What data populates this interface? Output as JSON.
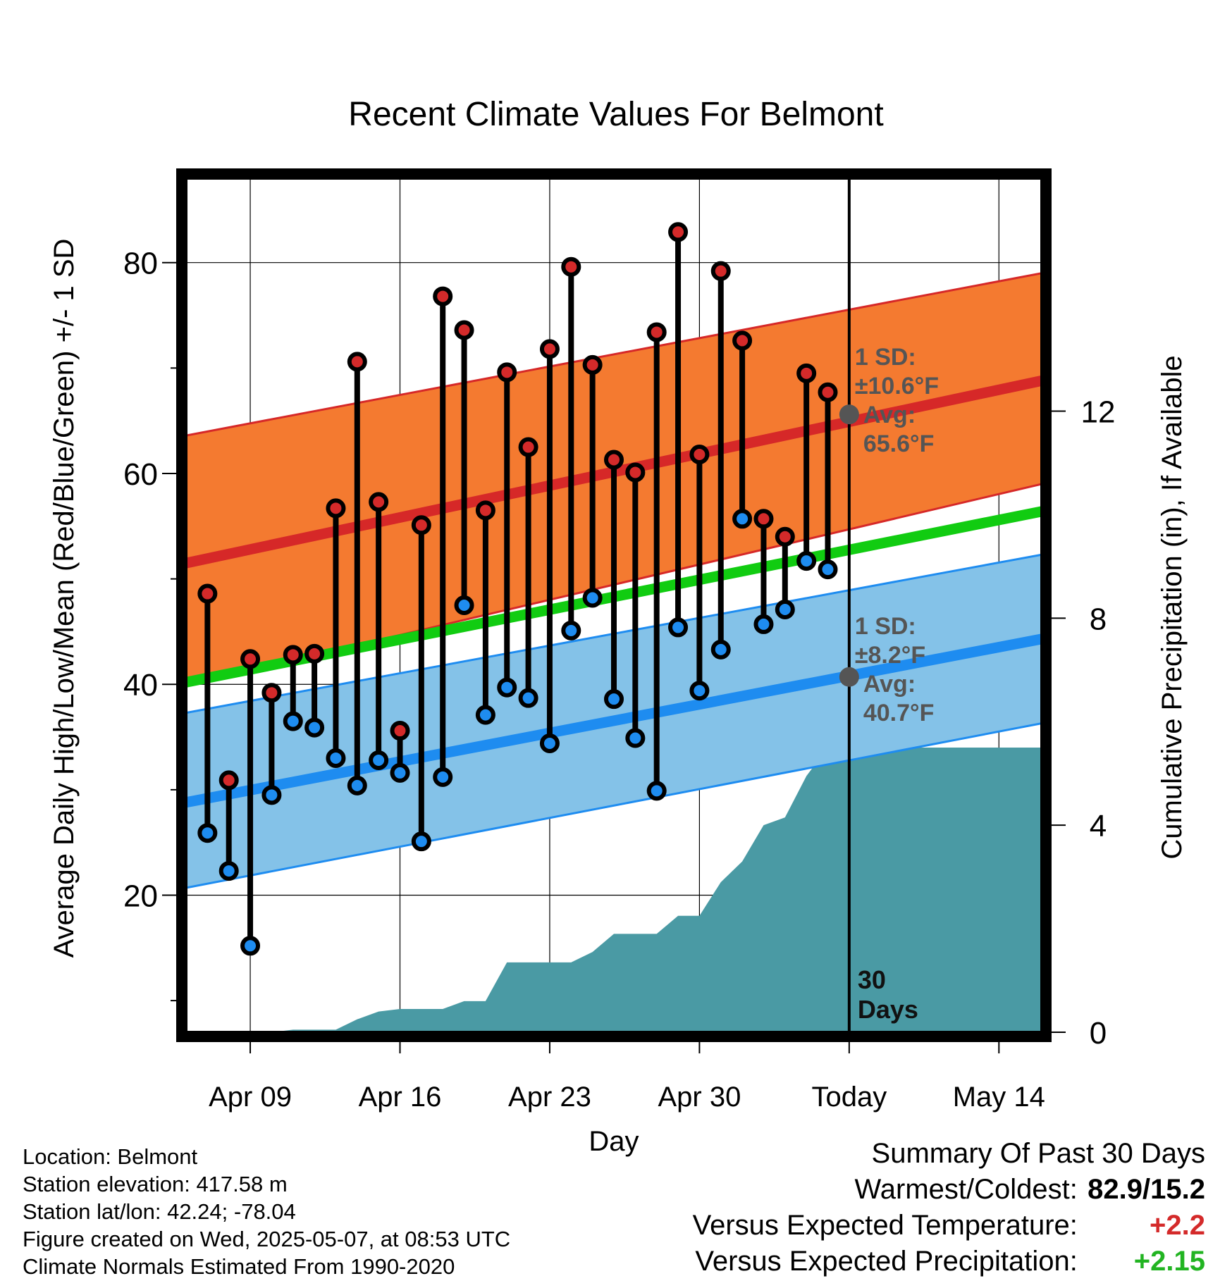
{
  "chart_data": {
    "type": "line",
    "title": "Recent Climate Values For Belmont",
    "xlabel": "Day",
    "ylabel": "Average Daily High/Low/Mean (Red/Blue/Green) +/- 1 SD",
    "y2label": "Cumulative Precipitation (in), If Available",
    "x_start_day": 6,
    "x_end_day": 46,
    "x_ticks": [
      {
        "day": 9,
        "label": "Apr 09"
      },
      {
        "day": 16,
        "label": "Apr 16"
      },
      {
        "day": 23,
        "label": "Apr 23"
      },
      {
        "day": 30,
        "label": "Apr 30"
      },
      {
        "day": 37,
        "label": "Today"
      },
      {
        "day": 44,
        "label": "May 14"
      }
    ],
    "ylim": [
      7,
      88
    ],
    "y_ticks": [
      20,
      40,
      60,
      80
    ],
    "y2lim": [
      0,
      16.5
    ],
    "y2_ticks": [
      0,
      4,
      8,
      12
    ],
    "today_day": 37,
    "today_label": [
      "30",
      "Days"
    ],
    "normal_high": {
      "x": [
        6,
        46
      ],
      "mean": [
        51.5,
        68.8
      ],
      "upper": [
        63.6,
        79.0
      ],
      "lower": [
        39.9,
        59.0
      ],
      "color_band": "#f47a30",
      "color_line": "#d62828"
    },
    "normal_low": {
      "x": [
        6,
        46
      ],
      "mean": [
        28.8,
        44.3
      ],
      "upper": [
        37.3,
        52.3
      ],
      "lower": [
        20.7,
        36.3
      ],
      "color_band": "#84c2e8",
      "color_line": "#1e8cf0"
    },
    "normal_mean": {
      "x": [
        6,
        46
      ],
      "values": [
        40.2,
        56.4
      ],
      "color": "#11cc11"
    },
    "highs_annotation": {
      "lines": [
        "1 SD:",
        "±10.6°F",
        "Avg:",
        "65.6°F"
      ],
      "avg": 65.6
    },
    "lows_annotation": {
      "lines": [
        "1 SD:",
        "±8.2°F",
        "Avg:",
        "40.7°F"
      ],
      "avg": 40.7
    },
    "daily": {
      "days": [
        7,
        8,
        9,
        10,
        11,
        12,
        13,
        14,
        15,
        16,
        17,
        18,
        19,
        20,
        21,
        22,
        23,
        24,
        25,
        26,
        27,
        28,
        29,
        30,
        31,
        32,
        33,
        34,
        35,
        36
      ],
      "highs": [
        48.6,
        30.9,
        42.4,
        39.2,
        42.8,
        42.9,
        56.7,
        70.6,
        57.3,
        35.6,
        55.1,
        76.8,
        73.6,
        56.5,
        69.6,
        62.5,
        71.8,
        79.6,
        70.3,
        61.3,
        60.1,
        73.4,
        82.9,
        61.8,
        79.2,
        72.6,
        55.7,
        54.0,
        69.5,
        67.7
      ],
      "lows": [
        25.9,
        22.3,
        15.2,
        29.5,
        36.5,
        35.9,
        33.0,
        30.4,
        32.8,
        31.6,
        25.1,
        31.2,
        47.5,
        37.1,
        39.7,
        38.7,
        34.4,
        45.1,
        48.2,
        38.6,
        34.9,
        29.9,
        45.4,
        39.4,
        43.3,
        55.7,
        45.7,
        47.1,
        51.7,
        50.9
      ],
      "high_color": "#d42a2a",
      "low_color": "#1e8cf0"
    },
    "precip": {
      "days": [
        6,
        7,
        8,
        9,
        10,
        11,
        12,
        13,
        14,
        15,
        16,
        17,
        18,
        19,
        20,
        21,
        22,
        23,
        24,
        25,
        26,
        27,
        28,
        29,
        30,
        31,
        32,
        33,
        34,
        35,
        36,
        37,
        46
      ],
      "values": [
        0,
        0,
        0,
        0,
        0,
        0.05,
        0.05,
        0.05,
        0.25,
        0.4,
        0.45,
        0.45,
        0.45,
        0.6,
        0.6,
        1.35,
        1.35,
        1.35,
        1.35,
        1.55,
        1.9,
        1.9,
        1.9,
        2.25,
        2.25,
        2.9,
        3.3,
        4.0,
        4.15,
        4.95,
        5.5,
        5.5,
        5.5
      ],
      "color": "#4a9aa4"
    }
  },
  "footer": {
    "location": "Location: Belmont",
    "elevation": "Station elevation: 417.58 m",
    "latlon": "Station lat/lon: 42.24; -78.04",
    "created": "Figure created on Wed, 2025-05-07, at 08:53 UTC",
    "normals": "Climate Normals Estimated From 1990-2020"
  },
  "summary": {
    "title": "Summary Of Past 30 Days",
    "warmest_label": "Warmest/Coldest:",
    "warmest_value": "82.9/15.2",
    "temp_label": "Versus Expected Temperature:",
    "temp_value": "+2.2",
    "precip_label": "Versus Expected Precipitation:",
    "precip_value": "+2.15"
  }
}
